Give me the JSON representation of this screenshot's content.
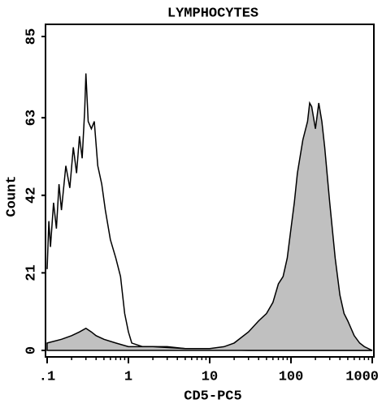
{
  "chart_data": {
    "type": "histogram-overlay",
    "title": "LYMPHOCYTES",
    "xlabel": "CD5-PC5",
    "ylabel": "Count",
    "xlog": true,
    "xlim": [
      0.1,
      1000
    ],
    "ylim": [
      0,
      85
    ],
    "xticks": [
      {
        "value": 0.1,
        "label": ".1"
      },
      1,
      10,
      100,
      1000
    ],
    "xminorticks": [
      0.2,
      0.3,
      0.4,
      0.5,
      0.6,
      0.7,
      0.8,
      0.9,
      2,
      3,
      4,
      5,
      6,
      7,
      8,
      9,
      20,
      30,
      40,
      50,
      60,
      70,
      80,
      90,
      200,
      300,
      400,
      500,
      600,
      700,
      800,
      900
    ],
    "yticks": [
      0,
      21,
      42,
      63,
      85
    ],
    "series": [
      {
        "color": "#000000",
        "fill": "none",
        "x": [
          0.1,
          0.105,
          0.11,
          0.12,
          0.13,
          0.14,
          0.15,
          0.17,
          0.19,
          0.21,
          0.23,
          0.25,
          0.27,
          0.29,
          0.3,
          0.32,
          0.35,
          0.38,
          0.42,
          0.47,
          0.52,
          0.6,
          0.7,
          0.8,
          0.9,
          1.0,
          1.1,
          1.5,
          2,
          3,
          5,
          8,
          15,
          30,
          100,
          1000
        ],
        "values": [
          22,
          35,
          28,
          40,
          33,
          45,
          38,
          50,
          44,
          55,
          48,
          58,
          52,
          65,
          75,
          62,
          60,
          62,
          50,
          45,
          38,
          30,
          25,
          20,
          10,
          5,
          2,
          1,
          1,
          1,
          0.5,
          0.3,
          0.2,
          0,
          0,
          0
        ]
      },
      {
        "color": "#000000",
        "fill": "#c0c0c0",
        "x": [
          0.1,
          0.15,
          0.2,
          0.25,
          0.3,
          0.35,
          0.4,
          0.5,
          0.7,
          1,
          2,
          5,
          10,
          15,
          20,
          30,
          40,
          50,
          60,
          70,
          80,
          90,
          100,
          110,
          120,
          140,
          160,
          170,
          180,
          200,
          220,
          240,
          260,
          300,
          350,
          400,
          450,
          500,
          600,
          700,
          800,
          1000
        ],
        "values": [
          2,
          3,
          4,
          5,
          6,
          5,
          4,
          3,
          2,
          1,
          1,
          0.5,
          0.5,
          1,
          2,
          5,
          8,
          10,
          13,
          18,
          20,
          25,
          33,
          40,
          48,
          57,
          62,
          67,
          66,
          60,
          67,
          62,
          55,
          40,
          25,
          15,
          10,
          8,
          4,
          2,
          1,
          0
        ]
      }
    ]
  }
}
